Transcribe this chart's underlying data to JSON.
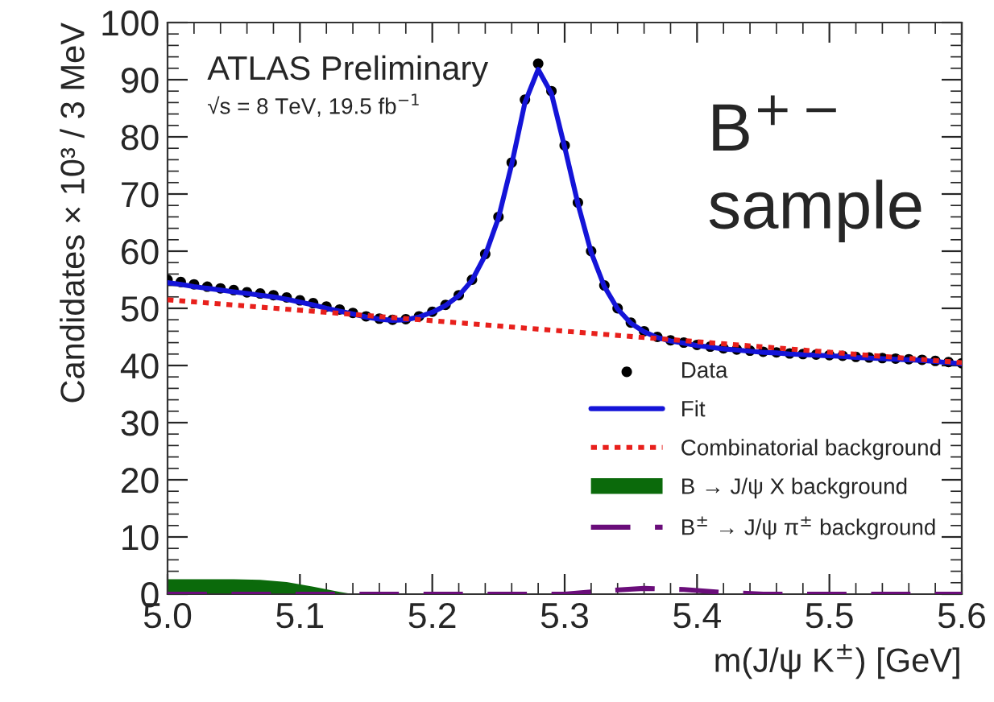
{
  "chart_data": {
    "type": "scatter",
    "xlabel": "m(J/ψ K$^{±}$) [GeV]",
    "ylabel": "Candidates × 10³ / 3 MeV",
    "xlim": [
      5.0,
      5.6
    ],
    "xticks": [
      {
        "value": 5.0,
        "label": "5.0"
      },
      5.1,
      5.2,
      5.3,
      5.4,
      5.5,
      {
        "value": 5.6,
        "label": "5.6"
      }
    ],
    "ylim": [
      0,
      100
    ],
    "yticks": [
      0,
      10,
      20,
      30,
      40,
      50,
      60,
      70,
      80,
      90,
      100
    ],
    "grid": false,
    "legend": "lower right",
    "annotations": [
      "ATLAS Preliminary",
      "√s = 8 TeV, 19.5 fb$^{−1}$",
      "B$^{+−}$\nsample"
    ],
    "series": [
      {
        "name": "Data",
        "marker": "circle",
        "color": "#000000",
        "x": [
          5.0,
          5.01,
          5.02,
          5.03,
          5.04,
          5.05,
          5.06,
          5.07,
          5.08,
          5.09,
          5.1,
          5.11,
          5.12,
          5.13,
          5.14,
          5.15,
          5.16,
          5.17,
          5.18,
          5.19,
          5.2,
          5.21,
          5.22,
          5.23,
          5.24,
          5.25,
          5.26,
          5.27,
          5.28,
          5.29,
          5.3,
          5.31,
          5.32,
          5.33,
          5.34,
          5.35,
          5.36,
          5.37,
          5.38,
          5.39,
          5.4,
          5.41,
          5.42,
          5.43,
          5.44,
          5.45,
          5.46,
          5.47,
          5.48,
          5.49,
          5.5,
          5.51,
          5.52,
          5.53,
          5.54,
          5.55,
          5.56,
          5.57,
          5.58,
          5.59,
          5.6
        ],
        "values": [
          55,
          54.6,
          54.2,
          53.8,
          53.5,
          53.2,
          52.8,
          52.6,
          52.3,
          51.9,
          51.4,
          50.9,
          50.3,
          49.8,
          49.2,
          48.6,
          48.2,
          48.0,
          48.1,
          48.6,
          49.4,
          50.6,
          52.3,
          55.0,
          59.5,
          66.0,
          75.5,
          86.5,
          92.8,
          88.0,
          78.5,
          68.5,
          60.0,
          54.0,
          50.0,
          47.5,
          46.0,
          45.0,
          44.4,
          44.0,
          43.6,
          43.3,
          43.0,
          42.8,
          42.6,
          42.4,
          42.3,
          42.1,
          42.0,
          41.9,
          41.8,
          41.7,
          41.5,
          41.4,
          41.3,
          41.2,
          41.1,
          41.0,
          40.8,
          40.6,
          40.4
        ]
      },
      {
        "name": "Fit",
        "type": "line",
        "line_style": "solid",
        "color": "#1414d8",
        "x": [
          5.0,
          5.01,
          5.02,
          5.03,
          5.04,
          5.05,
          5.06,
          5.07,
          5.08,
          5.09,
          5.1,
          5.11,
          5.12,
          5.13,
          5.14,
          5.15,
          5.16,
          5.17,
          5.18,
          5.19,
          5.2,
          5.21,
          5.22,
          5.23,
          5.24,
          5.25,
          5.26,
          5.27,
          5.28,
          5.29,
          5.3,
          5.31,
          5.32,
          5.33,
          5.34,
          5.35,
          5.36,
          5.37,
          5.38,
          5.39,
          5.4,
          5.41,
          5.42,
          5.43,
          5.44,
          5.45,
          5.46,
          5.47,
          5.48,
          5.49,
          5.5,
          5.51,
          5.52,
          5.53,
          5.54,
          5.55,
          5.56,
          5.57,
          5.58,
          5.59,
          5.6
        ],
        "values": [
          54.5,
          54.2,
          53.8,
          53.5,
          53.2,
          52.9,
          52.6,
          52.3,
          52.0,
          51.6,
          51.1,
          50.6,
          50.0,
          49.5,
          49.0,
          48.5,
          48.1,
          47.9,
          48.0,
          48.5,
          49.3,
          50.5,
          52.2,
          54.9,
          59.3,
          65.8,
          75.2,
          86.0,
          91.8,
          87.6,
          78.2,
          68.3,
          59.8,
          53.8,
          49.9,
          47.4,
          45.9,
          44.9,
          44.3,
          43.9,
          43.5,
          43.2,
          42.9,
          42.7,
          42.5,
          42.3,
          42.2,
          42.0,
          41.9,
          41.8,
          41.7,
          41.6,
          41.4,
          41.3,
          41.2,
          41.1,
          41.0,
          40.9,
          40.7,
          40.5,
          40.3
        ]
      },
      {
        "name": "Combinatorial background",
        "type": "line",
        "line_style": "dotted",
        "color": "#e8201c",
        "x": [
          5.0,
          5.6
        ],
        "values": [
          51.5,
          40.5
        ]
      },
      {
        "name": "B → J/ψ X background",
        "type": "area",
        "color": "#0b6a0b",
        "x": [
          5.0,
          5.05,
          5.07,
          5.09,
          5.11,
          5.13,
          5.14,
          5.6
        ],
        "values": [
          2.6,
          2.6,
          2.5,
          2.1,
          1.3,
          0.4,
          0,
          0
        ]
      },
      {
        "name": "B$^{±}$ → J/ψ π$^{±}$ background",
        "type": "line",
        "line_style": "dashed",
        "color": "#6a0d7a",
        "x": [
          5.0,
          5.3,
          5.33,
          5.36,
          5.39,
          5.42,
          5.45,
          5.6
        ],
        "values": [
          0,
          0,
          0.6,
          1.0,
          0.8,
          0.3,
          0,
          0
        ]
      }
    ]
  }
}
